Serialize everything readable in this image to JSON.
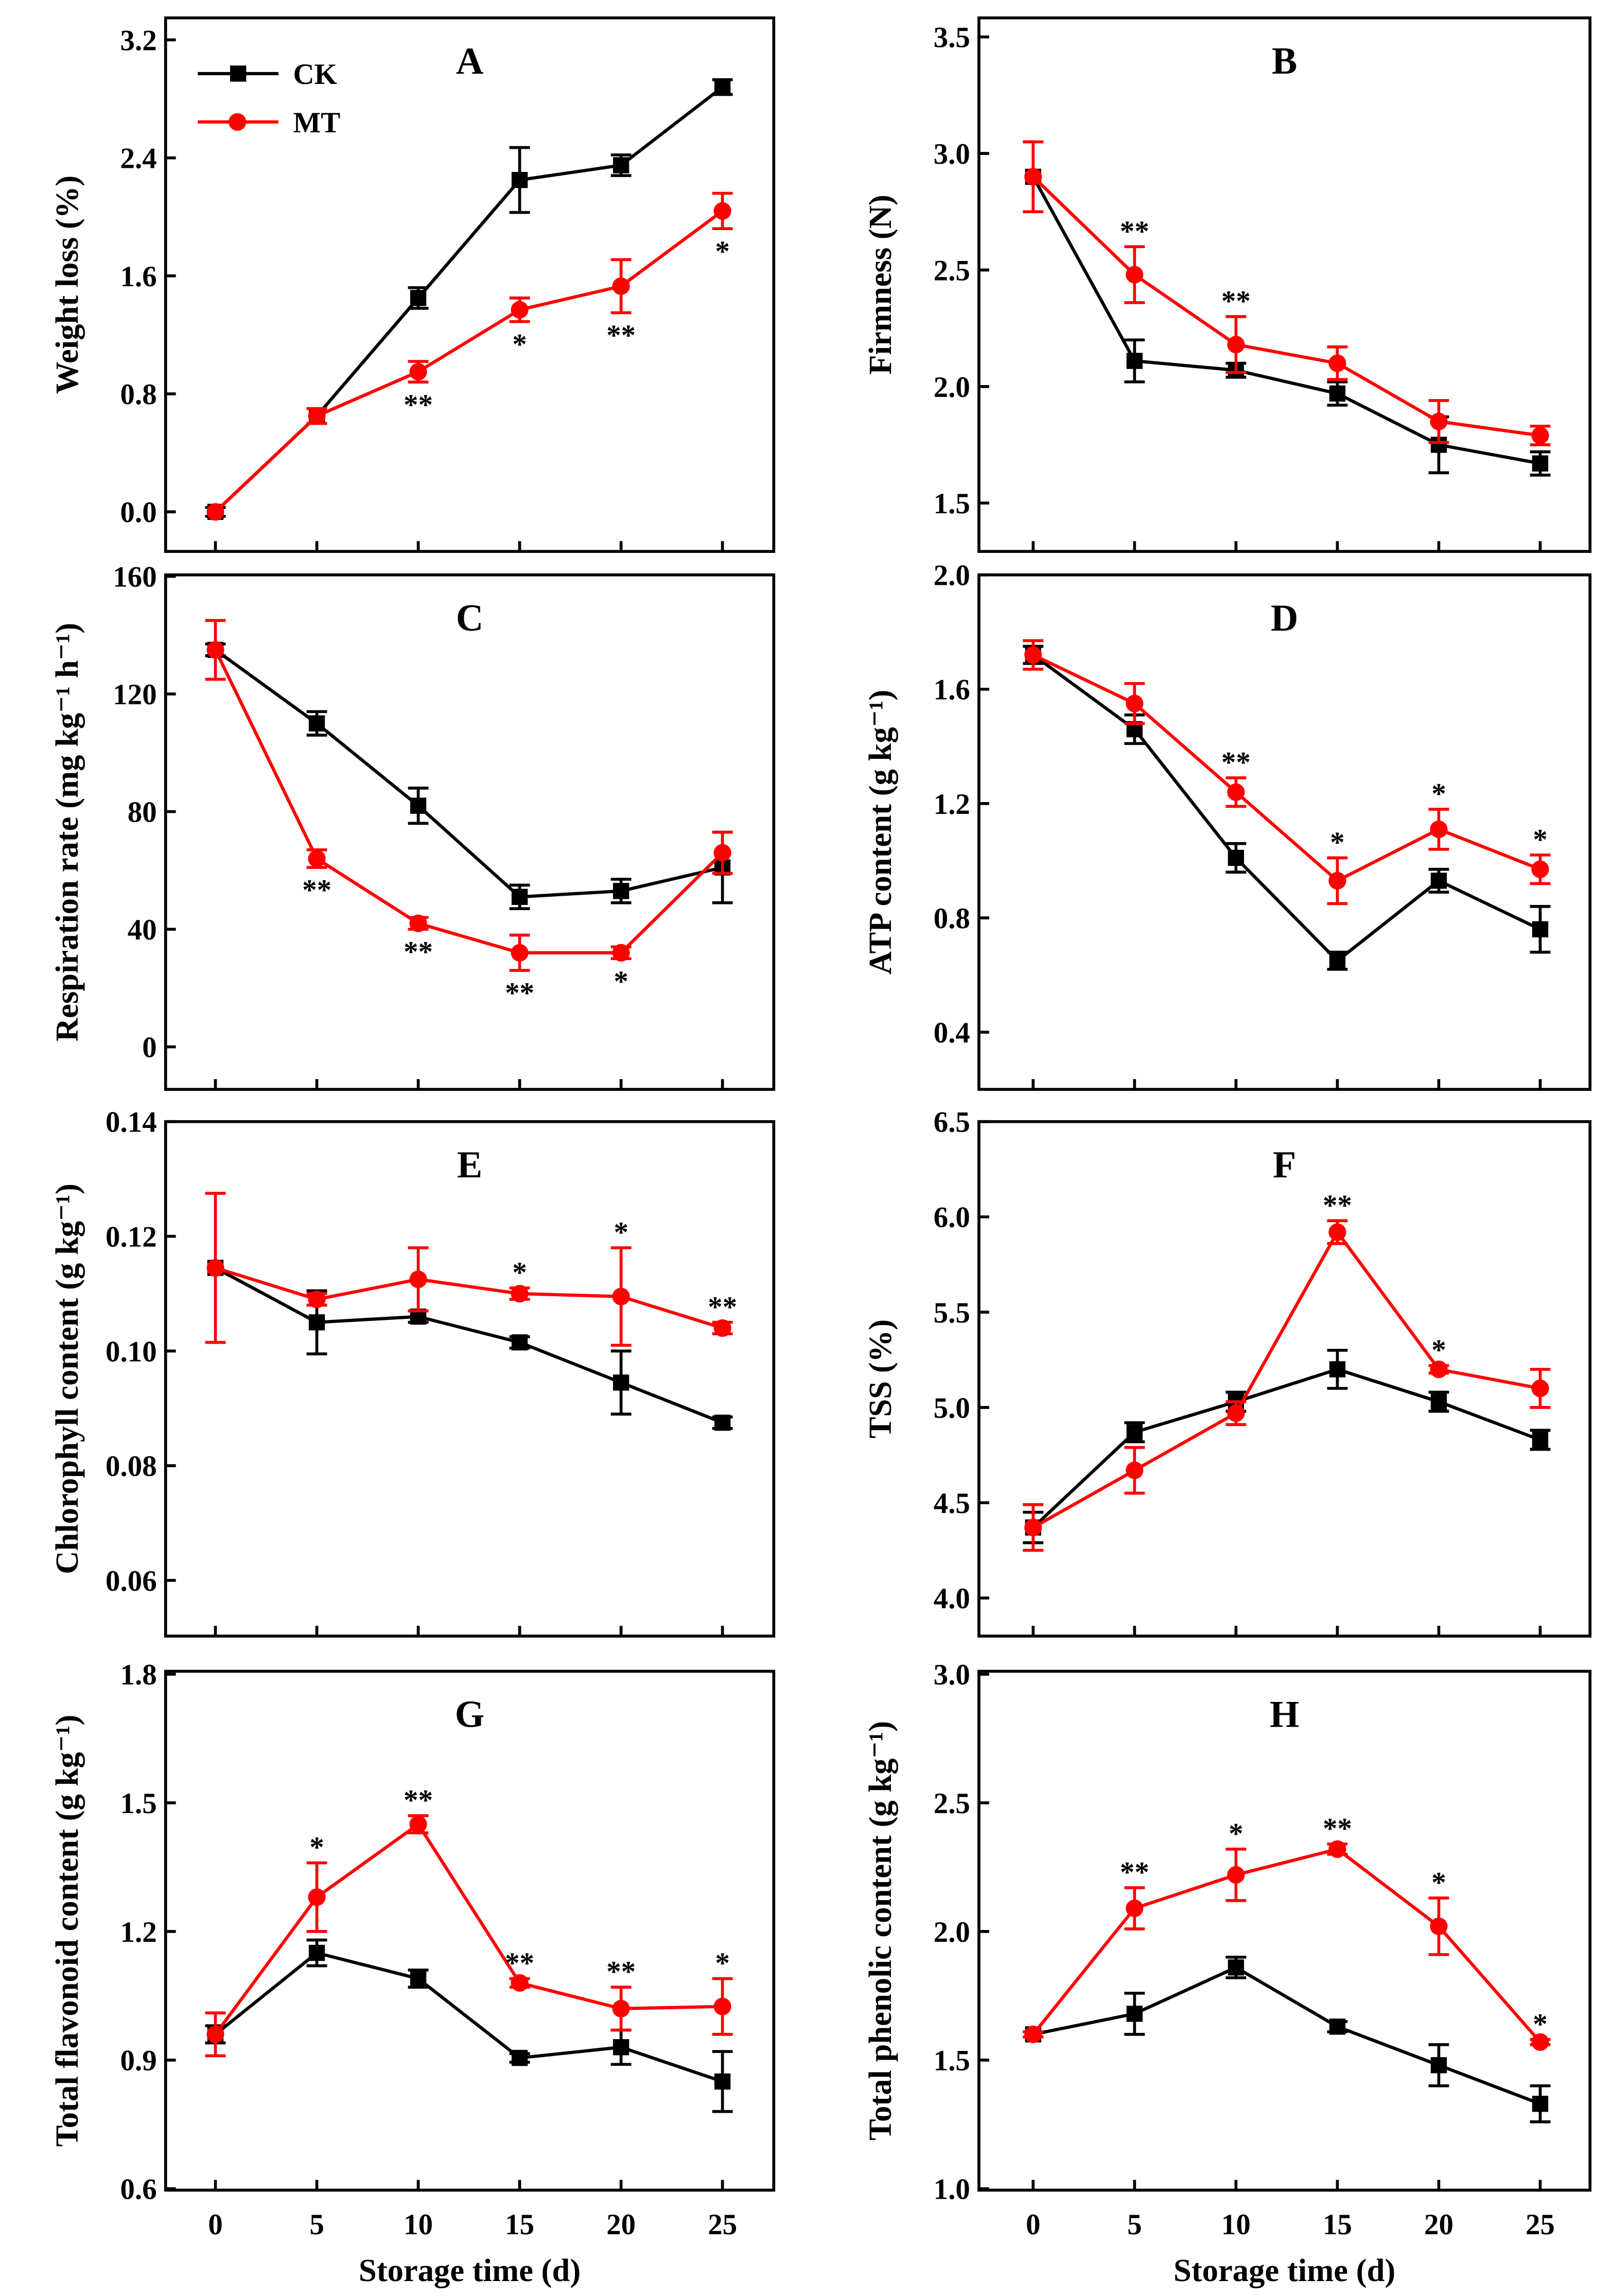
{
  "colors": {
    "CK": "#000000",
    "MT": "#ff0000"
  },
  "legend": [
    {
      "name": "CK",
      "marker": "square"
    },
    {
      "name": "MT",
      "marker": "circle"
    }
  ],
  "chart_data": [
    {
      "panel": "A",
      "type": "line",
      "ylabel": "Weight loss (%)",
      "ylim": [
        0,
        3.2
      ],
      "yticks": [
        "0.0",
        "0.8",
        "1.6",
        "2.4",
        "3.2"
      ],
      "ytick_values": [
        0,
        0.8,
        1.6,
        2.4,
        3.2
      ],
      "x": [
        0,
        5,
        10,
        15,
        20,
        25
      ],
      "series": [
        {
          "name": "CK",
          "values": [
            0,
            0.65,
            1.45,
            2.25,
            2.35,
            2.88
          ],
          "errors": [
            0.03,
            0.05,
            0.07,
            0.22,
            0.07,
            0.05
          ]
        },
        {
          "name": "MT",
          "values": [
            0,
            0.65,
            0.95,
            1.37,
            1.53,
            2.04
          ],
          "errors": [
            0,
            0.05,
            0.07,
            0.08,
            0.18,
            0.12
          ]
        }
      ],
      "significance": [
        "",
        "",
        "**",
        "*",
        "**",
        "*"
      ],
      "significance_position": "below"
    },
    {
      "panel": "B",
      "type": "line",
      "ylabel": "Firmness (N)",
      "ylim": [
        1.5,
        3.5
      ],
      "yticks": [
        "1.5",
        "2.0",
        "2.5",
        "3.0",
        "3.5"
      ],
      "ytick_values": [
        1.5,
        2.0,
        2.5,
        3.0,
        3.5
      ],
      "x": [
        0,
        5,
        10,
        15,
        20,
        25
      ],
      "series": [
        {
          "name": "CK",
          "values": [
            2.9,
            2.11,
            2.07,
            1.97,
            1.75,
            1.67
          ],
          "errors": [
            0,
            0.09,
            0.03,
            0.05,
            0.12,
            0.05
          ]
        },
        {
          "name": "MT",
          "values": [
            2.9,
            2.48,
            2.18,
            2.1,
            1.85,
            1.79
          ],
          "errors": [
            0.15,
            0.12,
            0.12,
            0.07,
            0.09,
            0.04
          ]
        }
      ],
      "significance": [
        "",
        "**",
        "**",
        "",
        "",
        ""
      ],
      "significance_position": "above"
    },
    {
      "panel": "C",
      "type": "line",
      "ylabel": "Respiration rate (mg kg⁻¹ h⁻¹)",
      "ylim": [
        0,
        160
      ],
      "yticks": [
        "0",
        "40",
        "80",
        "120",
        "160"
      ],
      "ytick_values": [
        0,
        40,
        80,
        120,
        160
      ],
      "x": [
        0,
        5,
        10,
        15,
        20,
        25
      ],
      "series": [
        {
          "name": "CK",
          "values": [
            135,
            110,
            82,
            51,
            53,
            61
          ],
          "errors": [
            2,
            4,
            6,
            4,
            4,
            12
          ]
        },
        {
          "name": "MT",
          "values": [
            135,
            64,
            42,
            32,
            32,
            66
          ],
          "errors": [
            10,
            3,
            2,
            6,
            2,
            7
          ]
        }
      ],
      "significance": [
        "",
        "**",
        "**",
        "**",
        "*",
        ""
      ],
      "significance_position": "below"
    },
    {
      "panel": "D",
      "type": "line",
      "ylabel": "ATP content (g kg⁻¹)",
      "ylim": [
        0.4,
        2.0
      ],
      "yticks": [
        "0.4",
        "0.8",
        "1.2",
        "1.6",
        "2.0"
      ],
      "ytick_values": [
        0.4,
        0.8,
        1.2,
        1.6,
        2.0
      ],
      "x": [
        0,
        5,
        10,
        15,
        20,
        25
      ],
      "series": [
        {
          "name": "CK",
          "values": [
            1.72,
            1.46,
            1.01,
            0.65,
            0.93,
            0.76
          ],
          "errors": [
            0.03,
            0.05,
            0.05,
            0.03,
            0.04,
            0.08
          ]
        },
        {
          "name": "MT",
          "values": [
            1.72,
            1.55,
            1.24,
            0.93,
            1.11,
            0.97
          ],
          "errors": [
            0.05,
            0.07,
            0.05,
            0.08,
            0.07,
            0.05
          ]
        }
      ],
      "significance": [
        "",
        "",
        "**",
        "*",
        "*",
        "*"
      ],
      "significance_position": "above"
    },
    {
      "panel": "E",
      "type": "line",
      "ylabel": "Chlorophyll content (g kg⁻¹)",
      "ylim": [
        0.06,
        0.14
      ],
      "yticks": [
        "0.06",
        "0.08",
        "0.10",
        "0.12",
        "0.14"
      ],
      "ytick_values": [
        0.06,
        0.08,
        0.1,
        0.12,
        0.14
      ],
      "x": [
        0,
        5,
        10,
        15,
        20,
        25
      ],
      "series": [
        {
          "name": "CK",
          "values": [
            0.1145,
            0.105,
            0.106,
            0.1015,
            0.0945,
            0.0875
          ],
          "errors": [
            0,
            0.0055,
            0.001,
            0.001,
            0.0055,
            0.001
          ]
        },
        {
          "name": "MT",
          "values": [
            0.1145,
            0.109,
            0.1125,
            0.11,
            0.1095,
            0.104
          ],
          "errors": [
            0.013,
            0.001,
            0.0055,
            0.001,
            0.0085,
            0.001
          ]
        }
      ],
      "significance": [
        "",
        "",
        "",
        "*",
        "*",
        "**"
      ],
      "significance_position": "above"
    },
    {
      "panel": "F",
      "type": "line",
      "ylabel": "TSS (%)",
      "ylim": [
        4.0,
        6.5
      ],
      "yticks": [
        "4.0",
        "4.5",
        "5.0",
        "5.5",
        "6.0",
        "6.5"
      ],
      "ytick_values": [
        4.0,
        4.5,
        5.0,
        5.5,
        6.0,
        6.5
      ],
      "x": [
        0,
        5,
        10,
        15,
        20,
        25
      ],
      "series": [
        {
          "name": "CK",
          "values": [
            4.37,
            4.87,
            5.03,
            5.2,
            5.03,
            4.83
          ],
          "errors": [
            0.08,
            0.05,
            0.05,
            0.1,
            0.05,
            0.05
          ]
        },
        {
          "name": "MT",
          "values": [
            4.37,
            4.67,
            4.97,
            5.92,
            5.2,
            5.1
          ],
          "errors": [
            0.12,
            0.12,
            0.06,
            0.06,
            0.02,
            0.1
          ]
        }
      ],
      "significance": [
        "",
        "",
        "",
        "**",
        "*",
        ""
      ],
      "significance_position": "above"
    },
    {
      "panel": "G",
      "type": "line",
      "ylabel": "Total flavonoid content (g kg⁻¹)",
      "xlabel": "Storage time (d)",
      "ylim": [
        0.6,
        1.8
      ],
      "yticks": [
        "0.6",
        "0.9",
        "1.2",
        "1.5",
        "1.8"
      ],
      "ytick_values": [
        0.6,
        0.9,
        1.2,
        1.5,
        1.8
      ],
      "x": [
        0,
        5,
        10,
        15,
        20,
        25
      ],
      "xticks": [
        "0",
        "5",
        "10",
        "15",
        "20",
        "25"
      ],
      "series": [
        {
          "name": "CK",
          "values": [
            0.96,
            1.15,
            1.09,
            0.905,
            0.93,
            0.85
          ],
          "errors": [
            0.02,
            0.03,
            0.02,
            0.01,
            0.04,
            0.07
          ]
        },
        {
          "name": "MT",
          "values": [
            0.96,
            1.28,
            1.45,
            1.08,
            1.02,
            1.025
          ],
          "errors": [
            0.05,
            0.08,
            0.02,
            0.01,
            0.05,
            0.065
          ]
        }
      ],
      "significance": [
        "",
        "*",
        "**",
        "**",
        "**",
        "*"
      ],
      "significance_position": "above"
    },
    {
      "panel": "H",
      "type": "line",
      "ylabel": "Total phenolic content (g kg⁻¹)",
      "xlabel": "Storage time (d)",
      "ylim": [
        1.0,
        3.0
      ],
      "yticks": [
        "1.0",
        "1.5",
        "2.0",
        "2.5",
        "3.0"
      ],
      "ytick_values": [
        1.0,
        1.5,
        2.0,
        2.5,
        3.0
      ],
      "x": [
        0,
        5,
        10,
        15,
        20,
        25
      ],
      "xticks": [
        "0",
        "5",
        "10",
        "15",
        "20",
        "25"
      ],
      "series": [
        {
          "name": "CK",
          "values": [
            1.6,
            1.68,
            1.86,
            1.63,
            1.48,
            1.33
          ],
          "errors": [
            0.01,
            0.08,
            0.04,
            0.02,
            0.08,
            0.07
          ]
        },
        {
          "name": "MT",
          "values": [
            1.6,
            2.09,
            2.22,
            2.32,
            2.02,
            1.57
          ],
          "errors": [
            0.01,
            0.08,
            0.1,
            0.02,
            0.11,
            0.01
          ]
        }
      ],
      "significance": [
        "",
        "**",
        "*",
        "**",
        "*",
        "*"
      ],
      "significance_position": "above"
    }
  ]
}
